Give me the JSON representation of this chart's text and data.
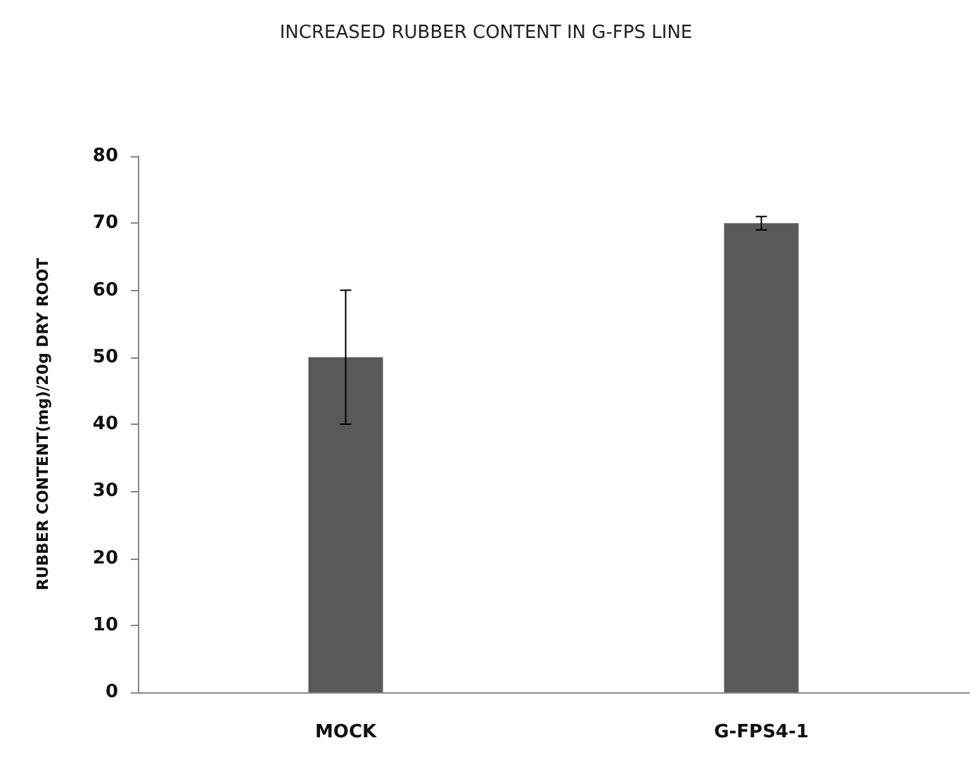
{
  "chart_data": {
    "type": "bar",
    "title": "INCREASED RUBBER CONTENT IN G-FPS LINE",
    "ylabel": "RUBBER CONTENT(mg)/20g DRY ROOT",
    "categories": [
      "MOCK",
      "G-FPS4-1"
    ],
    "values": [
      50,
      70
    ],
    "errors": [
      10,
      1
    ],
    "color": "#595959",
    "ylim": [
      0,
      80
    ],
    "yticks": [
      0,
      10,
      20,
      30,
      40,
      50,
      60,
      70,
      80
    ],
    "grid": false
  }
}
